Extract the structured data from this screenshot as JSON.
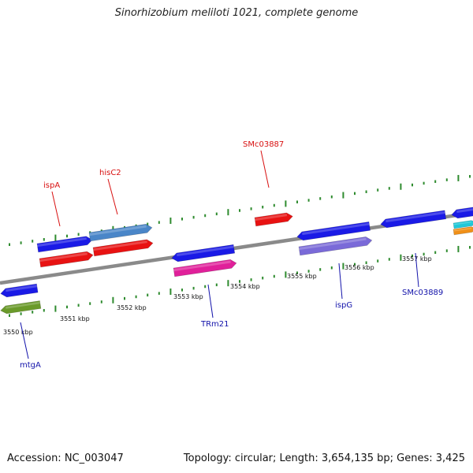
{
  "title": "Sinorhizobium meliloti 1021, complete genome",
  "footer": {
    "accession": "Accession: NC_003047",
    "summary": "Topology: circular; Length: 3,654,135 bp; Genes: 3,425"
  },
  "colors": {
    "backbone": "#8a8a8a",
    "tick": "#2e8b2e",
    "label_forward": "#d81010",
    "label_reverse": "#1212aa",
    "blue": "#1a1ae6",
    "red": "#e81212",
    "steelblue": "#4a86c8",
    "olive": "#6a9a2a",
    "magenta": "#e0209a",
    "lavender": "#7a6ad8",
    "cyan": "#20c8d8",
    "orange": "#f09018"
  },
  "ticks": [
    {
      "label": "3550 kbp"
    },
    {
      "label": "3551 kbp"
    },
    {
      "label": "3552 kbp"
    },
    {
      "label": "3553 kbp"
    },
    {
      "label": "3554 kbp"
    },
    {
      "label": "3555 kbp"
    },
    {
      "label": "3556 kbp"
    },
    {
      "label": "3557 kbp"
    }
  ],
  "gene_labels": [
    {
      "name": "ispA",
      "strand": "forward"
    },
    {
      "name": "hisC2",
      "strand": "forward"
    },
    {
      "name": "SMc03887",
      "strand": "forward"
    },
    {
      "name": "mtgA",
      "strand": "reverse"
    },
    {
      "name": "TRm21",
      "strand": "reverse"
    },
    {
      "name": "ispG",
      "strand": "reverse"
    },
    {
      "name": "SMc03889",
      "strand": "reverse"
    }
  ]
}
